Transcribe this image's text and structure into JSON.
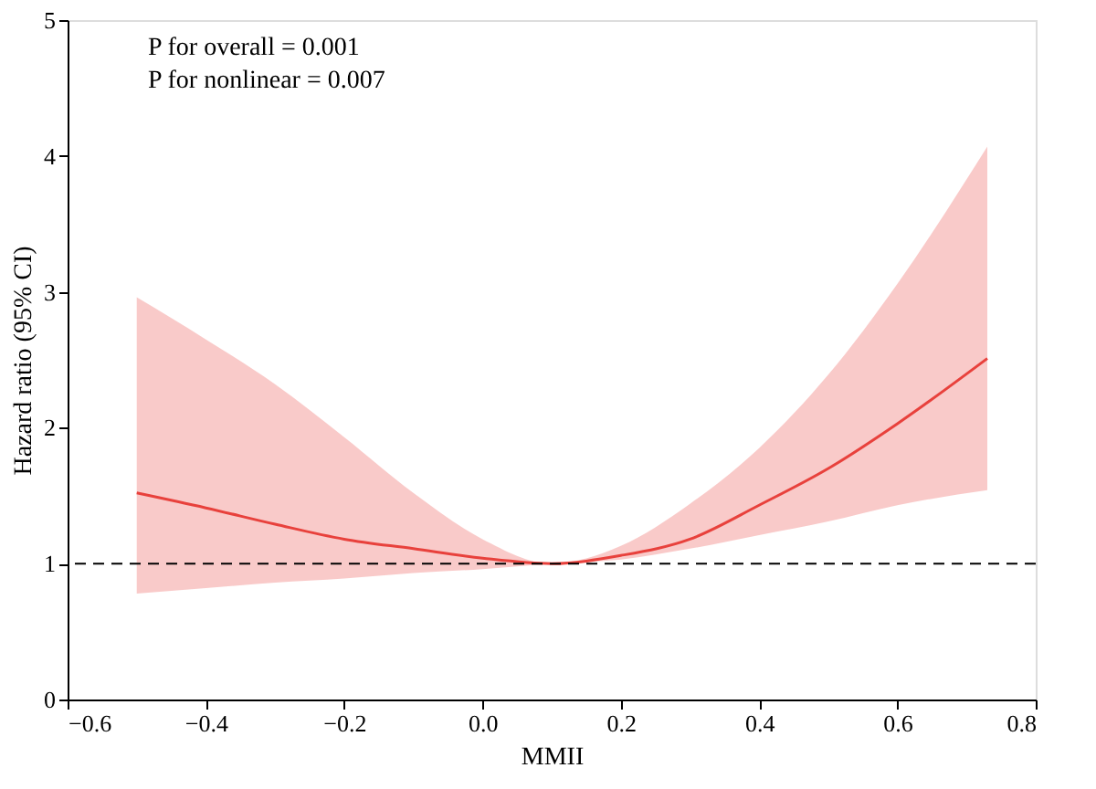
{
  "chart_data": {
    "type": "line",
    "xlabel": "MMII",
    "ylabel": "Hazard ratio (95% CI)",
    "annotations": [
      "P for overall = 0.001",
      "P for nonlinear = 0.007"
    ],
    "x": [
      -0.5,
      -0.4,
      -0.3,
      -0.2,
      -0.1,
      0.0,
      0.1,
      0.2,
      0.3,
      0.4,
      0.5,
      0.6,
      0.73
    ],
    "series": [
      {
        "color": "#e8413c",
        "values": [
          1.52,
          1.41,
          1.29,
          1.18,
          1.11,
          1.04,
          1.0,
          1.06,
          1.18,
          1.43,
          1.7,
          2.03,
          2.51
        ],
        "lower": [
          0.78,
          0.82,
          0.86,
          0.89,
          0.93,
          0.96,
          1.0,
          1.03,
          1.11,
          1.21,
          1.31,
          1.43,
          1.54
        ],
        "upper": [
          2.96,
          2.65,
          2.32,
          1.93,
          1.52,
          1.18,
          1.0,
          1.13,
          1.44,
          1.85,
          2.39,
          3.06,
          4.07
        ]
      }
    ],
    "xlim": [
      -0.6,
      0.8
    ],
    "ylim": [
      0,
      5
    ],
    "xticks": [
      {
        "value": -0.6,
        "label": "−0.6"
      },
      {
        "value": -0.4,
        "label": "−0.4"
      },
      {
        "value": -0.2,
        "label": "−0.2"
      },
      {
        "value": 0.0,
        "label": "0.0"
      },
      {
        "value": 0.2,
        "label": "0.2"
      },
      {
        "value": 0.4,
        "label": "0.4"
      },
      {
        "value": 0.6,
        "label": "0.6"
      },
      {
        "value": 0.8,
        "label": "0.8"
      }
    ],
    "yticks": [
      0,
      1,
      2,
      3,
      4,
      5
    ],
    "ref_lines": [
      {
        "axis": "y",
        "value": 1,
        "color": "#000000",
        "line_style": "dashed"
      }
    ],
    "grid": false,
    "marker": "none",
    "line_style": "solid"
  }
}
